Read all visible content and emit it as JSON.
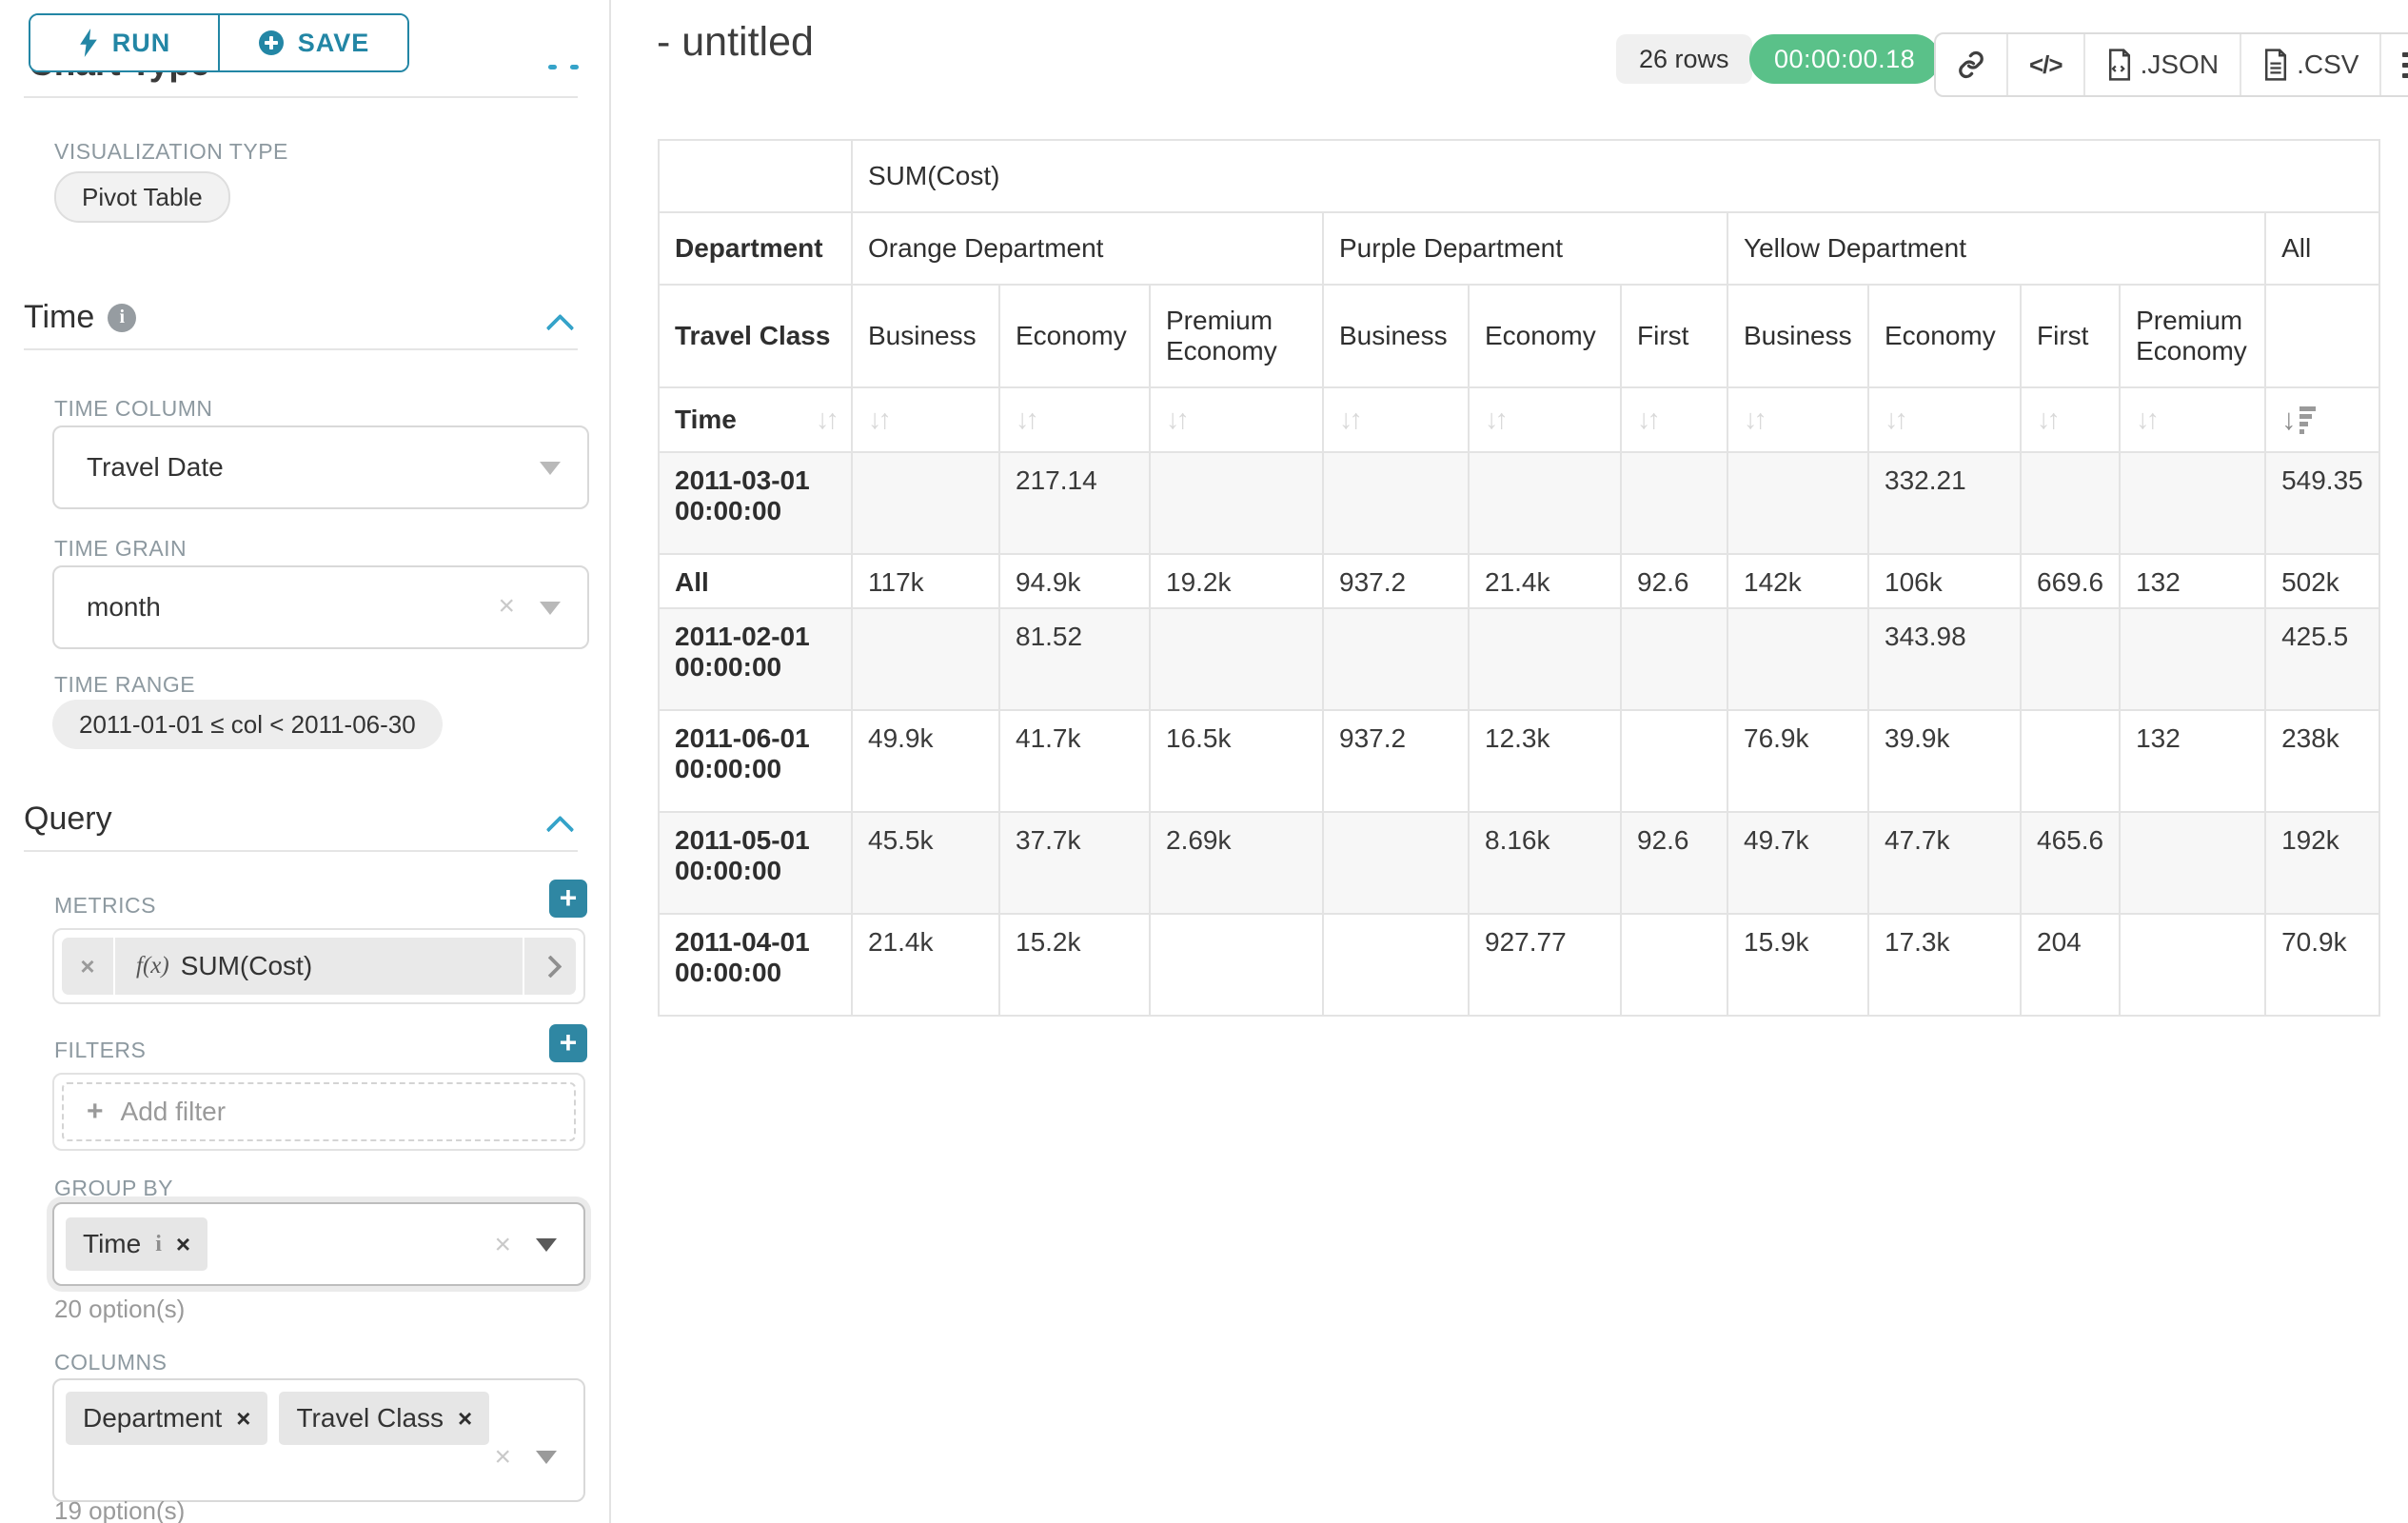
{
  "colors": {
    "accent_teal": "#2386a5",
    "chevron_blue": "#35a3c9",
    "timer_green": "#5ac189",
    "label_gray": "#8d99a0",
    "table_border": "#e3e3e3",
    "row_stripe": "#f7f7f7"
  },
  "icons": [
    "bolt-icon",
    "plus-circle-icon",
    "info-circle-icon",
    "chevron-up-icon",
    "caret-down-icon",
    "clear-x-icon",
    "function-icon",
    "chevron-right-icon",
    "plus-icon",
    "link-icon",
    "code-icon",
    "file-json-icon",
    "file-csv-icon",
    "menu-icon",
    "sort-icon",
    "sort-desc-icon"
  ],
  "sidebar": {
    "run_label": "RUN",
    "save_label": "SAVE",
    "chart_type_heading": "Chart Type",
    "visualization_type_label": "VISUALIZATION TYPE",
    "visualization_type_value": "Pivot Table",
    "time_section": {
      "title": "Time",
      "time_column_label": "TIME COLUMN",
      "time_column_value": "Travel Date",
      "time_grain_label": "TIME GRAIN",
      "time_grain_value": "month",
      "time_range_label": "TIME RANGE",
      "time_range_value": "2011-01-01 ≤ col < 2011-06-30"
    },
    "query_section": {
      "title": "Query",
      "metrics_label": "METRICS",
      "metric_prefix": "f(x)",
      "metric_value": "SUM(Cost)",
      "filters_label": "FILTERS",
      "add_filter_label": "Add filter",
      "group_by_label": "GROUP BY",
      "group_by_chips": [
        "Time"
      ],
      "group_by_hint": "20 option(s)",
      "columns_label": "COLUMNS",
      "columns_chips": [
        "Department",
        "Travel Class"
      ],
      "columns_hint": "19 option(s)"
    }
  },
  "header": {
    "title": "- untitled",
    "row_count": "26 rows",
    "timer": "00:00:00.18",
    "export_json_label": ".JSON",
    "export_csv_label": ".CSV"
  },
  "chart_data": {
    "type": "table",
    "metric": "SUM(Cost)",
    "row_dimension": "Time",
    "column_dimensions": [
      "Department",
      "Travel Class"
    ],
    "column_groups": [
      {
        "department": "Orange Department",
        "classes": [
          "Business",
          "Economy",
          "Premium Economy"
        ]
      },
      {
        "department": "Purple Department",
        "classes": [
          "Business",
          "Economy",
          "First"
        ]
      },
      {
        "department": "Yellow Department",
        "classes": [
          "Business",
          "Economy",
          "First",
          "Premium Economy"
        ]
      },
      {
        "department": "All",
        "classes": [
          ""
        ]
      }
    ],
    "sorted_column_index": 10,
    "sort_direction": "desc",
    "rows": [
      {
        "time": "2011-03-01 00:00:00",
        "values": [
          "",
          "217.14",
          "",
          "",
          "",
          "",
          "",
          "332.21",
          "",
          "",
          "549.35"
        ]
      },
      {
        "time": "All",
        "values": [
          "117k",
          "94.9k",
          "19.2k",
          "937.2",
          "21.4k",
          "92.6",
          "142k",
          "106k",
          "669.6",
          "132",
          "502k"
        ]
      },
      {
        "time": "2011-02-01 00:00:00",
        "values": [
          "",
          "81.52",
          "",
          "",
          "",
          "",
          "",
          "343.98",
          "",
          "",
          "425.5"
        ]
      },
      {
        "time": "2011-06-01 00:00:00",
        "values": [
          "49.9k",
          "41.7k",
          "16.5k",
          "937.2",
          "12.3k",
          "",
          "76.9k",
          "39.9k",
          "",
          "132",
          "238k"
        ]
      },
      {
        "time": "2011-05-01 00:00:00",
        "values": [
          "45.5k",
          "37.7k",
          "2.69k",
          "",
          "8.16k",
          "92.6",
          "49.7k",
          "47.7k",
          "465.6",
          "",
          "192k"
        ]
      },
      {
        "time": "2011-04-01 00:00:00",
        "values": [
          "21.4k",
          "15.2k",
          "",
          "",
          "927.77",
          "",
          "15.9k",
          "17.3k",
          "204",
          "",
          "70.9k"
        ]
      }
    ]
  }
}
